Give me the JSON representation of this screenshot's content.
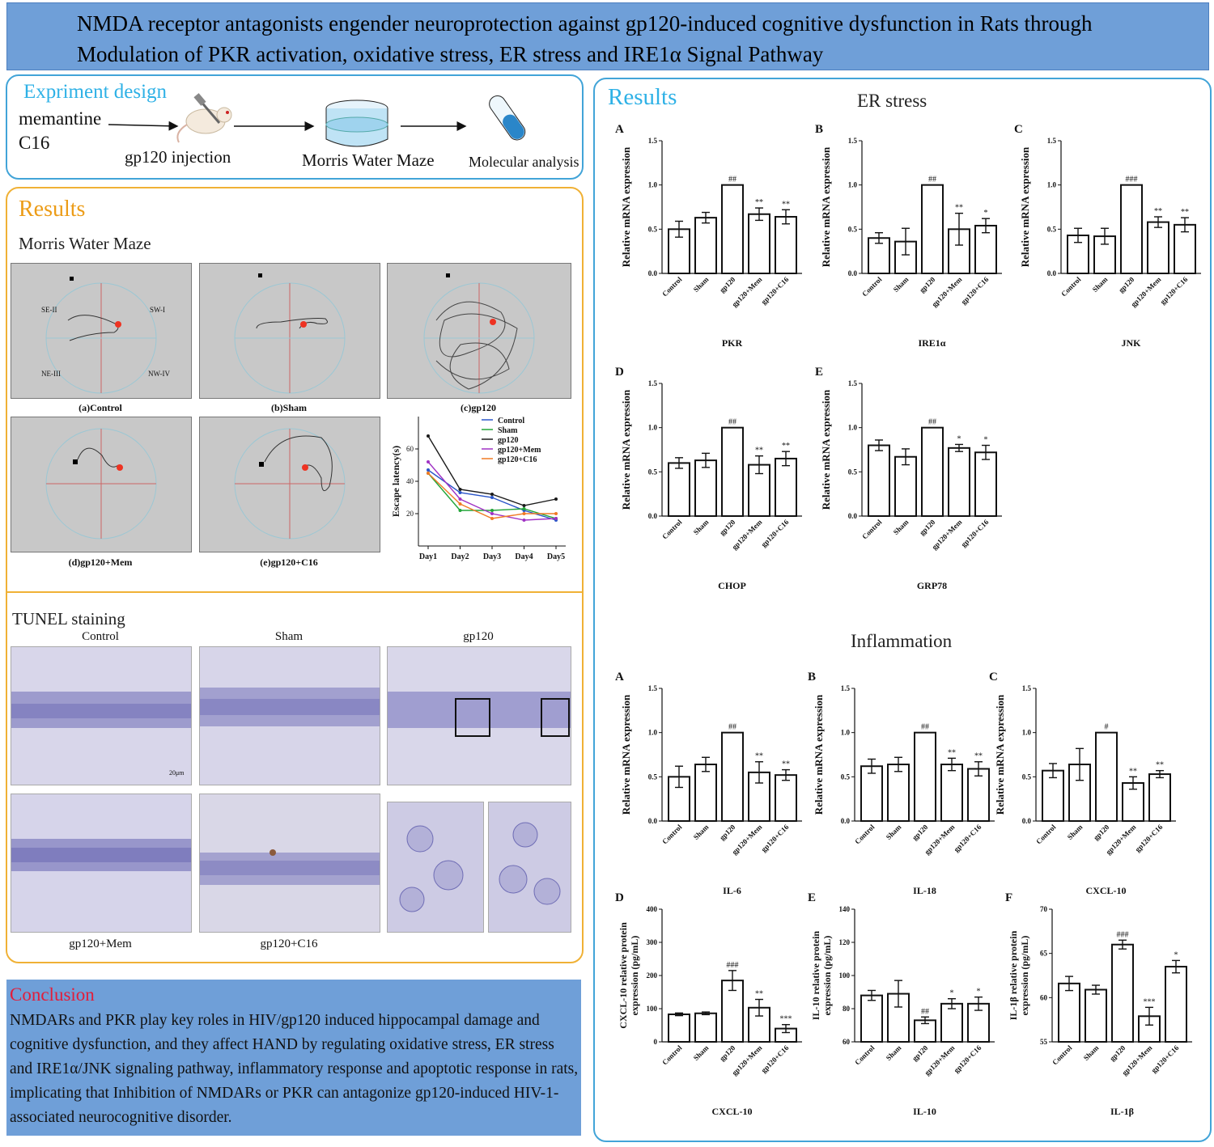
{
  "title": "NMDA receptor antagonists engender neuroprotection against gp120-induced cognitive dysfunction in Rats through Modulation of PKR activation, oxidative stress, ER stress and IRE1α Signal Pathway",
  "design": {
    "heading": "Expriment design",
    "drugs": [
      "memantine",
      "C16"
    ],
    "steps": [
      "gp120 injection",
      "Morris Water Maze",
      "Molecular analysis"
    ]
  },
  "left_results": {
    "heading": "Results",
    "mwm_heading": "Morris Water Maze",
    "quadrants": [
      "SE-II",
      "SW-I",
      "NE-III",
      "NW-IV"
    ],
    "maze_captions": [
      "(a)Control",
      "(b)Sham",
      "(c)gp120",
      "(d)gp120+Mem",
      "(e)gp120+C16"
    ],
    "tunel_heading": "TUNEL staining",
    "tunel_labels": [
      "Control",
      "Sham",
      "gp120",
      "gp120+Mem",
      "gp120+C16"
    ],
    "scale": "20μm"
  },
  "right_results": {
    "heading": "Results",
    "er_heading": "ER stress",
    "inflam_heading": "Inflammation"
  },
  "conclusion": {
    "heading": "Conclusion",
    "text": "NMDARs and PKR play key roles in HIV/gp120 induced hippocampal damage and cognitive dysfunction, and they affect HAND by regulating oxidative stress, ER stress and IRE1α/JNK signaling pathway, inflammatory response and apoptotic response in rats, implicating that Inhibition of NMDARs or PKR can antagonize gp120-induced HIV-1-associated neurocognitive disorder."
  },
  "colors": {
    "title_bg": "#6f9fd8",
    "accent_blue": "#2eb1e6",
    "accent_orange": "#ec9c17",
    "accent_red": "#e21d3a"
  },
  "chart_data": [
    {
      "type": "line",
      "ylabel": "Escape latency(s)",
      "x": [
        "Day1",
        "Day2",
        "Day3",
        "Day4",
        "Day5"
      ],
      "ylim": [
        0,
        80
      ],
      "yticks": [
        20,
        40,
        60
      ],
      "series": [
        {
          "name": "Control",
          "color": "#2a55c9",
          "values": [
            47,
            33,
            30,
            22,
            16
          ]
        },
        {
          "name": "Sham",
          "color": "#22a539",
          "values": [
            45,
            22,
            22,
            23,
            17
          ]
        },
        {
          "name": "gp120",
          "color": "#1a1a1a",
          "values": [
            68,
            35,
            32,
            25,
            29
          ]
        },
        {
          "name": "gp120+Mem",
          "color": "#a033c4",
          "values": [
            52,
            29,
            20,
            16,
            17
          ]
        },
        {
          "name": "gp120+C16",
          "color": "#f07a26",
          "values": [
            45,
            26,
            17,
            20,
            20
          ]
        }
      ]
    },
    {
      "type": "bar",
      "panel": "A",
      "group": "ER stress",
      "xlabel": "PKR",
      "ylabel": "Relative mRNA expression",
      "ylim": [
        0,
        1.5
      ],
      "yticks": [
        "0.0",
        "0.5",
        "1.0",
        "1.5"
      ],
      "categories": [
        "Control",
        "Sham",
        "gp120",
        "gp120+Mem",
        "gp120+C16"
      ],
      "values": [
        0.5,
        0.63,
        1.0,
        0.67,
        0.64
      ],
      "errors": [
        0.09,
        0.06,
        0,
        0.07,
        0.08
      ],
      "marks": [
        "",
        "",
        "##",
        "**",
        "**"
      ]
    },
    {
      "type": "bar",
      "panel": "B",
      "group": "ER stress",
      "xlabel": "IRE1α",
      "ylabel": "Relative mRNA expression",
      "ylim": [
        0,
        1.5
      ],
      "yticks": [
        "0.0",
        "0.5",
        "1.0",
        "1.5"
      ],
      "categories": [
        "Control",
        "Sham",
        "gp120",
        "gp120+Mem",
        "gp120+C16"
      ],
      "values": [
        0.4,
        0.36,
        1.0,
        0.5,
        0.54
      ],
      "errors": [
        0.06,
        0.15,
        0,
        0.18,
        0.08
      ],
      "marks": [
        "",
        "",
        "##",
        "**",
        "*"
      ]
    },
    {
      "type": "bar",
      "panel": "C",
      "group": "ER stress",
      "xlabel": "JNK",
      "ylabel": "Relative mRNA expression",
      "ylim": [
        0,
        1.5
      ],
      "yticks": [
        "0.0",
        "0.5",
        "1.0",
        "1.5"
      ],
      "categories": [
        "Control",
        "Sham",
        "gp120",
        "gp120+Mem",
        "gp120+C16"
      ],
      "values": [
        0.43,
        0.42,
        1.0,
        0.58,
        0.55
      ],
      "errors": [
        0.08,
        0.09,
        0,
        0.06,
        0.08
      ],
      "marks": [
        "",
        "",
        "###",
        "**",
        "**"
      ]
    },
    {
      "type": "bar",
      "panel": "D",
      "group": "ER stress",
      "xlabel": "CHOP",
      "ylabel": "Relative mRNA expression",
      "ylim": [
        0,
        1.5
      ],
      "yticks": [
        "0.0",
        "0.5",
        "1.0",
        "1.5"
      ],
      "categories": [
        "Control",
        "Sham",
        "gp120",
        "gp120+Mem",
        "gp120+C16"
      ],
      "values": [
        0.6,
        0.63,
        1.0,
        0.58,
        0.65
      ],
      "errors": [
        0.06,
        0.08,
        0,
        0.1,
        0.08
      ],
      "marks": [
        "",
        "",
        "##",
        "**",
        "**"
      ]
    },
    {
      "type": "bar",
      "panel": "E",
      "group": "ER stress",
      "xlabel": "GRP78",
      "ylabel": "Relative mRNA expression",
      "ylim": [
        0,
        1.5
      ],
      "yticks": [
        "0.0",
        "0.5",
        "1.0",
        "1.5"
      ],
      "categories": [
        "Control",
        "Sham",
        "gp120",
        "gp120+Mem",
        "gp120+C16"
      ],
      "values": [
        0.8,
        0.67,
        1.0,
        0.77,
        0.72
      ],
      "errors": [
        0.06,
        0.09,
        0,
        0.04,
        0.08
      ],
      "marks": [
        "",
        "",
        "##",
        "*",
        "*"
      ]
    },
    {
      "type": "bar",
      "panel": "A",
      "group": "Inflammation",
      "xlabel": "IL-6",
      "ylabel": "Relative mRNA expression",
      "ylim": [
        0,
        1.5
      ],
      "yticks": [
        "0.0",
        "0.5",
        "1.0",
        "1.5"
      ],
      "categories": [
        "Control",
        "Sham",
        "gp120",
        "gp120+Mem",
        "gp120+C16"
      ],
      "values": [
        0.5,
        0.64,
        1.0,
        0.55,
        0.52
      ],
      "errors": [
        0.12,
        0.08,
        0,
        0.12,
        0.06
      ],
      "marks": [
        "",
        "",
        "##",
        "**",
        "**"
      ]
    },
    {
      "type": "bar",
      "panel": "B",
      "group": "Inflammation",
      "xlabel": "IL-18",
      "ylabel": "Relative mRNA expression",
      "ylim": [
        0,
        1.5
      ],
      "yticks": [
        "0.0",
        "0.5",
        "1.0",
        "1.5"
      ],
      "categories": [
        "Control",
        "Sham",
        "gp120",
        "gp120+Mem",
        "gp120+C16"
      ],
      "values": [
        0.62,
        0.64,
        1.0,
        0.64,
        0.59
      ],
      "errors": [
        0.08,
        0.08,
        0,
        0.07,
        0.08
      ],
      "marks": [
        "",
        "",
        "##",
        "**",
        "**"
      ]
    },
    {
      "type": "bar",
      "panel": "C",
      "group": "Inflammation",
      "xlabel": "CXCL-10",
      "ylabel": "Relative mRNA expression",
      "ylim": [
        0,
        1.5
      ],
      "yticks": [
        "0.0",
        "0.5",
        "1.0",
        "1.5"
      ],
      "categories": [
        "Control",
        "Sham",
        "gp120",
        "gp120+Mem",
        "gp120+C16"
      ],
      "values": [
        0.57,
        0.64,
        1.0,
        0.43,
        0.53
      ],
      "errors": [
        0.08,
        0.18,
        0,
        0.07,
        0.04
      ],
      "marks": [
        "",
        "",
        "#",
        "**",
        "**"
      ]
    },
    {
      "type": "bar",
      "panel": "D",
      "group": "Inflammation",
      "xlabel": "CXCL-10",
      "ylabel": "CXCL-10 relative protein expression (pg/mL)",
      "ylim": [
        0,
        400
      ],
      "yticks": [
        "0",
        "100",
        "200",
        "300",
        "400"
      ],
      "categories": [
        "Control",
        "Sham",
        "gp120",
        "gp120+Mem",
        "gp120+C16"
      ],
      "values": [
        83,
        86,
        185,
        103,
        40
      ],
      "errors": [
        4,
        4,
        30,
        25,
        12
      ],
      "marks": [
        "",
        "",
        "###",
        "**",
        "***"
      ]
    },
    {
      "type": "bar",
      "panel": "E",
      "group": "Inflammation",
      "xlabel": "IL-10",
      "ylabel": "IL-10 relative protein expression (pg/mL)",
      "ylim": [
        60,
        140
      ],
      "yticks": [
        "60",
        "80",
        "100",
        "120",
        "140"
      ],
      "categories": [
        "Control",
        "Sham",
        "gp120",
        "gp120+Mem",
        "gp120+C16"
      ],
      "values": [
        88,
        89,
        73,
        83,
        83
      ],
      "errors": [
        3,
        8,
        2,
        3,
        4
      ],
      "marks": [
        "",
        "",
        "##",
        "*",
        "*"
      ]
    },
    {
      "type": "bar",
      "panel": "F",
      "group": "Inflammation",
      "xlabel": "IL-1β",
      "ylabel": "IL-1β relative protein expression (pg/mL)",
      "ylim": [
        55,
        70
      ],
      "yticks": [
        "55",
        "60",
        "65",
        "70"
      ],
      "categories": [
        "Control",
        "Sham",
        "gp120",
        "gp120+Mem",
        "gp120+C16"
      ],
      "values": [
        61.6,
        60.9,
        66.0,
        57.9,
        63.5
      ],
      "errors": [
        0.8,
        0.5,
        0.5,
        1.0,
        0.7
      ],
      "marks": [
        "",
        "",
        "###",
        "***",
        "*"
      ]
    }
  ]
}
